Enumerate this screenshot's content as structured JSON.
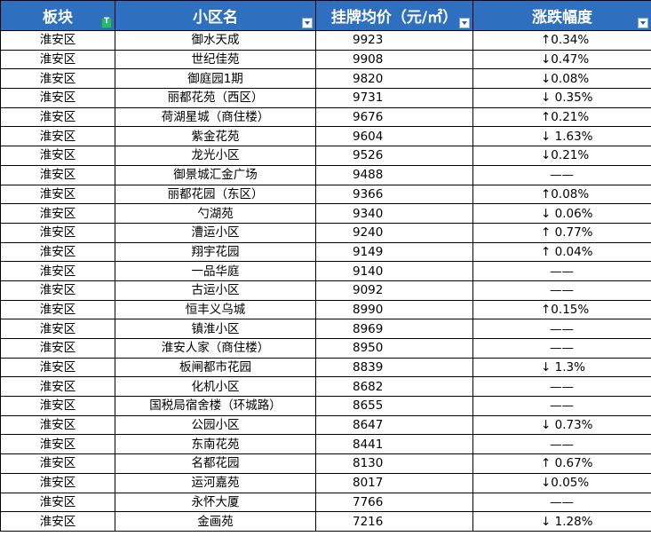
{
  "headers": [
    {
      "label": "板块"
    },
    {
      "label": "小区名"
    },
    {
      "label": "挂牌均价（元/㎡）"
    },
    {
      "label": "涨跌幅度"
    }
  ],
  "rows": [
    {
      "district": "淮安区",
      "community": "御水天成",
      "price": "9923",
      "change": "↑0.34%"
    },
    {
      "district": "淮安区",
      "community": "世纪佳苑",
      "price": "9908",
      "change": "↓0.47%"
    },
    {
      "district": "淮安区",
      "community": "御庭园1期",
      "price": "9820",
      "change": "↓0.08%"
    },
    {
      "district": "淮安区",
      "community": "丽都花苑（西区）",
      "price": "9731",
      "change": "↓ 0.35%"
    },
    {
      "district": "淮安区",
      "community": "荷湖星城（商住楼）",
      "price": "9676",
      "change": "↑0.21%"
    },
    {
      "district": "淮安区",
      "community": "紫金花苑",
      "price": "9604",
      "change": "↓ 1.63%"
    },
    {
      "district": "淮安区",
      "community": "龙光小区",
      "price": "9526",
      "change": "↓0.21%"
    },
    {
      "district": "淮安区",
      "community": "御景城汇金广场",
      "price": "9488",
      "change": "——"
    },
    {
      "district": "淮安区",
      "community": "丽都花园（东区）",
      "price": "9366",
      "change": "↑0.08%"
    },
    {
      "district": "淮安区",
      "community": "勺湖苑",
      "price": "9340",
      "change": "↓ 0.06%"
    },
    {
      "district": "淮安区",
      "community": "漕运小区",
      "price": "9240",
      "change": "↑ 0.77%"
    },
    {
      "district": "淮安区",
      "community": "翔宇花园",
      "price": "9149",
      "change": "↑ 0.04%"
    },
    {
      "district": "淮安区",
      "community": "一品华庭",
      "price": "9140",
      "change": "——"
    },
    {
      "district": "淮安区",
      "community": "古运小区",
      "price": "9092",
      "change": "——"
    },
    {
      "district": "淮安区",
      "community": "恒丰义乌城",
      "price": "8990",
      "change": "↑0.15%"
    },
    {
      "district": "淮安区",
      "community": "镇淮小区",
      "price": "8969",
      "change": "——"
    },
    {
      "district": "淮安区",
      "community": "淮安人家（商住楼）",
      "price": "8950",
      "change": "——"
    },
    {
      "district": "淮安区",
      "community": "板闸都市花园",
      "price": "8839",
      "change": "↓ 1.3%"
    },
    {
      "district": "淮安区",
      "community": "化机小区",
      "price": "8682",
      "change": "——"
    },
    {
      "district": "淮安区",
      "community": "国税局宿舍楼（环城路）",
      "price": "8655",
      "change": "——"
    },
    {
      "district": "淮安区",
      "community": "公园小区",
      "price": "8647",
      "change": "↓ 0.73%"
    },
    {
      "district": "淮安区",
      "community": "东南花苑",
      "price": "8441",
      "change": "——"
    },
    {
      "district": "淮安区",
      "community": "名都花园",
      "price": "8130",
      "change": "↑ 0.67%"
    },
    {
      "district": "淮安区",
      "community": "运河嘉苑",
      "price": "8017",
      "change": "↓0.05%"
    },
    {
      "district": "淮安区",
      "community": "永怀大厦",
      "price": "7766",
      "change": "——"
    },
    {
      "district": "淮安区",
      "community": "金画苑",
      "price": "7216",
      "change": "↓ 1.28%"
    }
  ],
  "colors": {
    "header_bg": "#2f6fbf",
    "header_text": "#ffffff",
    "filter_active": "#2bb673"
  },
  "icons": [
    "filter-active-icon",
    "filter-dropdown-icon"
  ]
}
